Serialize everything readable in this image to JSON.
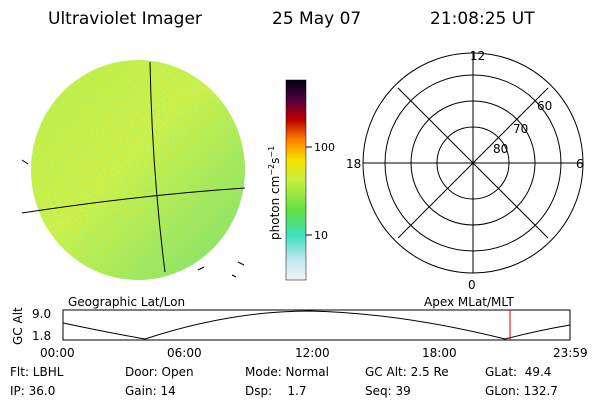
{
  "header": {
    "title": "Ultraviolet Imager",
    "date": "25 May 07",
    "time": "21:08:25 UT"
  },
  "colorbar": {
    "label": "photon cm",
    "exp1": "−2",
    "unit2": "s",
    "exp2": "−1",
    "ticks": [
      "100",
      "10"
    ]
  },
  "polar": {
    "hour_labels": [
      "12",
      "18",
      "6",
      "0"
    ],
    "lat_labels": [
      "60",
      "70",
      "80"
    ]
  },
  "strip": {
    "axis_label": "GC Alt",
    "yticks": [
      "9.0",
      "1.8"
    ],
    "left_title": "Geographic Lat/Lon",
    "right_title": "Apex MLat/MLT",
    "xticks": [
      "00:00",
      "06:00",
      "12:00",
      "18:00",
      "23:59"
    ]
  },
  "footer": {
    "rows": [
      [
        "Flt: LBHL",
        "Door: Open",
        "Mode: Normal",
        "GC Alt: 2.5 Re",
        "GLat:  49.4"
      ],
      [
        "IP: 36.0",
        "Gain: 14",
        "Dsp:    1.7",
        "Seq: 39",
        "GLon: 132.7"
      ]
    ]
  }
}
